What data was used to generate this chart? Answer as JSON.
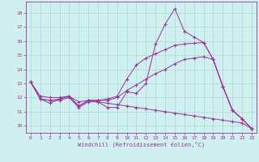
{
  "xlabel": "Windchill (Refroidissement éolien,°C)",
  "background_color": "#cff0ee",
  "grid_color": "#aad8d4",
  "line_color": "#993399",
  "xlim": [
    -0.5,
    23.5
  ],
  "ylim": [
    9.5,
    18.8
  ],
  "yticks": [
    10,
    11,
    12,
    13,
    14,
    15,
    16,
    17,
    18
  ],
  "xticks": [
    0,
    1,
    2,
    3,
    4,
    5,
    6,
    7,
    8,
    9,
    10,
    11,
    12,
    13,
    14,
    15,
    16,
    17,
    18,
    19,
    20,
    21,
    22,
    23
  ],
  "series": [
    {
      "x": [
        0,
        1,
        2,
        3,
        4,
        5,
        6,
        7,
        8,
        9,
        10,
        11,
        12,
        13,
        14,
        15,
        16,
        17,
        18,
        19,
        20,
        21,
        22,
        23
      ],
      "y": [
        13.1,
        11.9,
        11.8,
        11.8,
        12.0,
        11.3,
        11.7,
        11.7,
        11.3,
        11.3,
        12.4,
        12.3,
        13.0,
        15.8,
        17.2,
        18.3,
        16.7,
        16.3,
        15.9,
        14.7,
        12.8,
        11.1,
        10.5,
        9.8
      ]
    },
    {
      "x": [
        0,
        1,
        2,
        3,
        4,
        5,
        6,
        7,
        8,
        9,
        10,
        11,
        12,
        13,
        14,
        15,
        16,
        17,
        18,
        19,
        20,
        21,
        22,
        23
      ],
      "y": [
        13.1,
        11.9,
        11.6,
        11.9,
        12.1,
        11.4,
        11.8,
        11.8,
        11.9,
        12.1,
        13.3,
        14.3,
        14.8,
        15.1,
        15.4,
        15.7,
        15.8,
        15.85,
        15.9,
        14.7,
        12.8,
        11.1,
        10.5,
        9.8
      ]
    },
    {
      "x": [
        0,
        1,
        2,
        3,
        4,
        5,
        6,
        7,
        8,
        9,
        10,
        11,
        12,
        13,
        14,
        15,
        16,
        17,
        18,
        19,
        20,
        21,
        22,
        23
      ],
      "y": [
        13.1,
        11.9,
        11.8,
        11.9,
        12.1,
        11.4,
        11.8,
        11.8,
        11.8,
        12.0,
        12.5,
        12.9,
        13.3,
        13.7,
        14.0,
        14.4,
        14.7,
        14.8,
        14.9,
        14.7,
        12.8,
        11.1,
        10.5,
        9.8
      ]
    },
    {
      "x": [
        0,
        1,
        2,
        3,
        4,
        5,
        6,
        7,
        8,
        9,
        10,
        11,
        12,
        13,
        14,
        15,
        16,
        17,
        18,
        19,
        20,
        21,
        22,
        23
      ],
      "y": [
        13.1,
        12.1,
        12.0,
        12.0,
        12.1,
        11.7,
        11.8,
        11.7,
        11.6,
        11.5,
        11.4,
        11.3,
        11.2,
        11.1,
        11.0,
        10.9,
        10.8,
        10.7,
        10.6,
        10.5,
        10.4,
        10.3,
        10.2,
        9.8
      ]
    }
  ]
}
